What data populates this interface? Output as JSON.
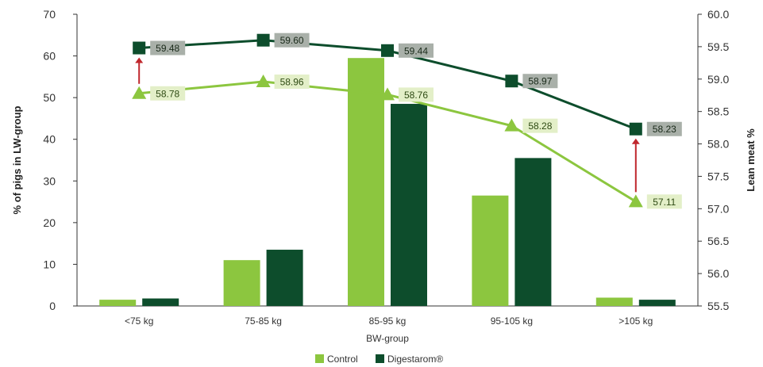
{
  "chart_data": {
    "type": "bar+line",
    "categories": [
      "<75 kg",
      "75-85 kg",
      "85-95 kg",
      "95-105 kg",
      ">105 kg"
    ],
    "xlabel": "BW-group",
    "ylabel_left": "% of pigs in LW-group",
    "ylabel_right": "Lean meat %",
    "ylim_left": [
      0,
      70
    ],
    "yticks_left": [
      "0",
      "10",
      "20",
      "30",
      "40",
      "50",
      "60",
      "70"
    ],
    "ylim_right": [
      55.5,
      60.0
    ],
    "yticks_right": [
      "55.5",
      "56.0",
      "56.5",
      "57.0",
      "57.5",
      "58.0",
      "58.5",
      "59.0",
      "59.5",
      "60.0"
    ],
    "grid": false,
    "legend_position": "bottom",
    "legend": [
      "Control",
      "Digestarom®"
    ],
    "bar_series": [
      {
        "name": "Control",
        "color": "#8cc63f",
        "values": [
          1.5,
          11,
          59.5,
          26.5,
          2
        ]
      },
      {
        "name": "Digestarom®",
        "color": "#0d4d2c",
        "values": [
          1.8,
          13.5,
          48.5,
          35.5,
          1.5
        ]
      }
    ],
    "line_series": [
      {
        "name": "Control",
        "color": "#8cc63f",
        "marker": "triangle",
        "values": [
          58.78,
          58.96,
          58.76,
          58.28,
          57.11
        ],
        "labels": [
          "58.78",
          "58.96",
          "58.76",
          "58.28",
          "57.11"
        ]
      },
      {
        "name": "Digestarom®",
        "color": "#0d4d2c",
        "marker": "square",
        "values": [
          59.48,
          59.6,
          59.44,
          58.97,
          58.23
        ],
        "labels": [
          "59.48",
          "59.60",
          "59.44",
          "58.97",
          "58.23"
        ]
      }
    ],
    "annotations": [
      {
        "type": "arrow-up",
        "category": "<75 kg",
        "color": "#c0272d"
      },
      {
        "type": "arrow-up",
        "category": ">105 kg",
        "color": "#c0272d"
      }
    ]
  }
}
